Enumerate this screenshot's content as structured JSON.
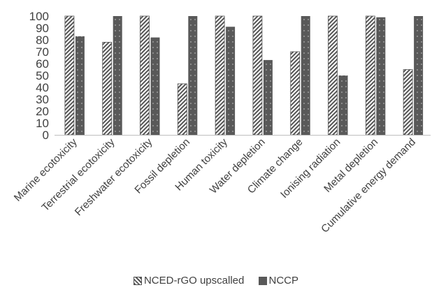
{
  "chart_data": {
    "type": "bar",
    "categories": [
      "Marine ecotoxicity",
      "Terrestrial ecotoxicity",
      "Freshwater ecotoxicity",
      "Fossil depletion",
      "Human toxicity",
      "Water depletion",
      "Climate change",
      "Ionising radiation",
      "Metal depletion",
      "Cumulative energy demand"
    ],
    "series": [
      {
        "name": "NCED-rGO upscalled",
        "values": [
          100,
          78,
          100,
          43,
          100,
          100,
          70,
          100,
          100,
          55
        ]
      },
      {
        "name": "NCCP",
        "values": [
          83,
          100,
          82,
          100,
          91,
          63,
          100,
          50,
          99,
          100
        ]
      }
    ],
    "yticks": [
      "0",
      "10",
      "20",
      "30",
      "40",
      "50",
      "60",
      "70",
      "80",
      "90",
      "100"
    ],
    "ylim": [
      0,
      100
    ],
    "title": "",
    "xlabel": "",
    "ylabel": "",
    "grid": false,
    "legend_position": "bottom",
    "colors": {
      "series_a_stripe": "#555555",
      "series_b_fill": "#595959",
      "axis": "#bfbfbf",
      "text": "#404040"
    }
  }
}
